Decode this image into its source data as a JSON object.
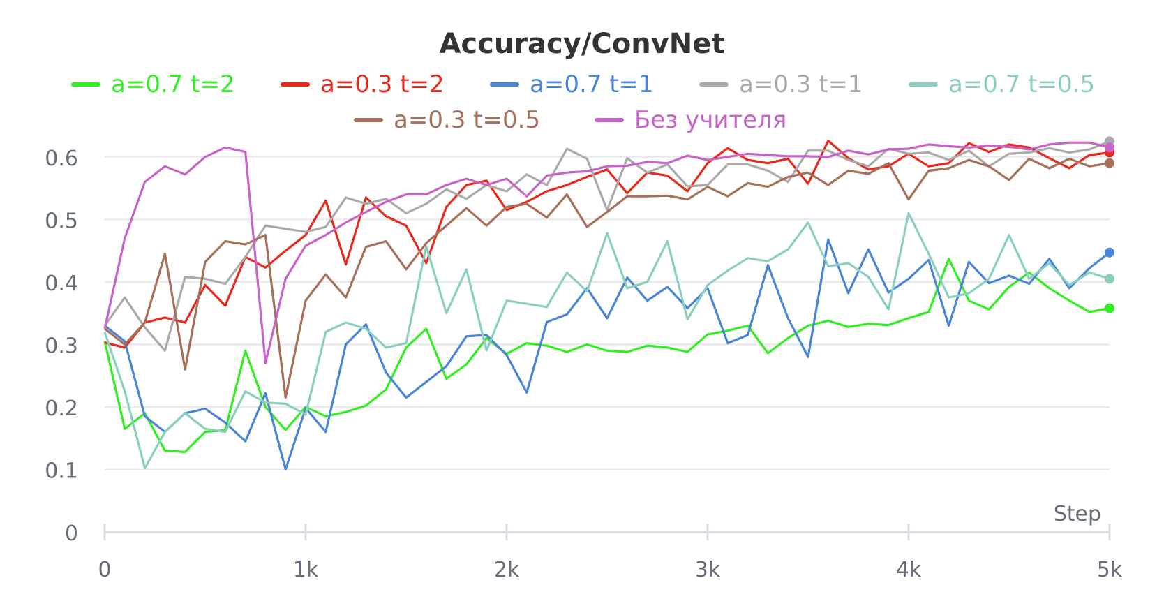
{
  "chart_data": {
    "type": "line",
    "title": "Accuracy/ConvNet",
    "xlabel": "Step",
    "ylabel": "",
    "xlim": [
      0,
      5000
    ],
    "ylim": [
      0,
      0.65
    ],
    "xticks": [
      0,
      1000,
      2000,
      3000,
      4000,
      5000
    ],
    "xtick_labels": [
      "0",
      "1k",
      "2k",
      "3k",
      "4k",
      "5k"
    ],
    "yticks": [
      0,
      0.1,
      0.2,
      0.3,
      0.4,
      0.5,
      0.6
    ],
    "ytick_labels": [
      "0",
      "0.1",
      "0.2",
      "0.3",
      "0.4",
      "0.5",
      "0.6"
    ],
    "grid": true,
    "legend_position": "top",
    "x": [
      0,
      100,
      200,
      300,
      400,
      500,
      600,
      700,
      800,
      900,
      1000,
      1100,
      1200,
      1300,
      1400,
      1500,
      1600,
      1700,
      1800,
      1900,
      2000,
      2100,
      2200,
      2300,
      2400,
      2500,
      2600,
      2700,
      2800,
      2900,
      3000,
      3100,
      3200,
      3300,
      3400,
      3500,
      3600,
      3700,
      3800,
      3900,
      4000,
      4100,
      4200,
      4300,
      4400,
      4500,
      4600,
      4700,
      4800,
      4900,
      5000
    ],
    "series": [
      {
        "name": "a=0.7 t=2",
        "color": "#33ee22",
        "values": [
          0.305,
          0.165,
          0.19,
          0.13,
          0.128,
          0.16,
          0.163,
          0.29,
          0.2,
          0.163,
          0.2,
          0.185,
          0.192,
          0.202,
          0.228,
          0.295,
          0.325,
          0.245,
          0.268,
          0.31,
          0.285,
          0.302,
          0.298,
          0.288,
          0.3,
          0.29,
          0.288,
          0.298,
          0.295,
          0.288,
          0.316,
          0.322,
          0.33,
          0.286,
          0.31,
          0.33,
          0.338,
          0.328,
          0.333,
          0.331,
          0.342,
          0.352,
          0.437,
          0.37,
          0.356,
          0.392,
          0.415,
          0.39,
          0.37,
          0.352,
          0.358
        ]
      },
      {
        "name": "a=0.3 t=2",
        "color": "#e82a1c",
        "values": [
          0.303,
          0.295,
          0.335,
          0.343,
          0.335,
          0.395,
          0.362,
          0.44,
          0.423,
          0.45,
          0.475,
          0.53,
          0.428,
          0.535,
          0.505,
          0.49,
          0.43,
          0.52,
          0.555,
          0.562,
          0.515,
          0.528,
          0.545,
          0.555,
          0.568,
          0.58,
          0.542,
          0.575,
          0.57,
          0.545,
          0.59,
          0.614,
          0.595,
          0.59,
          0.597,
          0.557,
          0.626,
          0.598,
          0.58,
          0.585,
          0.605,
          0.585,
          0.59,
          0.622,
          0.608,
          0.62,
          0.615,
          0.598,
          0.582,
          0.603,
          0.607
        ]
      },
      {
        "name": "a=0.7 t=1",
        "color": "#4a85d8",
        "values": [
          0.33,
          0.305,
          0.185,
          0.16,
          0.19,
          0.197,
          0.175,
          0.145,
          0.222,
          0.1,
          0.198,
          0.16,
          0.3,
          0.332,
          0.255,
          0.215,
          0.24,
          0.265,
          0.313,
          0.315,
          0.283,
          0.223,
          0.336,
          0.348,
          0.39,
          0.342,
          0.407,
          0.37,
          0.392,
          0.358,
          0.39,
          0.302,
          0.315,
          0.427,
          0.342,
          0.28,
          0.468,
          0.382,
          0.452,
          0.383,
          0.405,
          0.435,
          0.33,
          0.432,
          0.398,
          0.41,
          0.397,
          0.437,
          0.39,
          0.422,
          0.447
        ]
      },
      {
        "name": "a=0.3 t=1",
        "color": "#aaaaaa",
        "values": [
          0.33,
          0.375,
          0.327,
          0.29,
          0.408,
          0.405,
          0.397,
          0.44,
          0.49,
          0.485,
          0.48,
          0.488,
          0.535,
          0.525,
          0.533,
          0.51,
          0.525,
          0.548,
          0.533,
          0.555,
          0.545,
          0.572,
          0.555,
          0.613,
          0.597,
          0.515,
          0.598,
          0.575,
          0.588,
          0.553,
          0.555,
          0.588,
          0.588,
          0.578,
          0.56,
          0.61,
          0.61,
          0.595,
          0.585,
          0.613,
          0.605,
          0.607,
          0.595,
          0.61,
          0.585,
          0.605,
          0.607,
          0.614,
          0.607,
          0.612,
          0.625
        ]
      },
      {
        "name": "a=0.7 t=0.5",
        "color": "#8ccfc0",
        "values": [
          0.32,
          0.225,
          0.102,
          0.16,
          0.19,
          0.165,
          0.16,
          0.225,
          0.207,
          0.205,
          0.188,
          0.32,
          0.335,
          0.325,
          0.295,
          0.302,
          0.457,
          0.35,
          0.42,
          0.29,
          0.37,
          0.365,
          0.36,
          0.415,
          0.385,
          0.478,
          0.39,
          0.4,
          0.465,
          0.34,
          0.395,
          0.418,
          0.438,
          0.433,
          0.452,
          0.495,
          0.425,
          0.43,
          0.408,
          0.356,
          0.51,
          0.445,
          0.375,
          0.382,
          0.405,
          0.475,
          0.405,
          0.43,
          0.395,
          0.415,
          0.405
        ]
      },
      {
        "name": "a=0.3 t=0.5",
        "color": "#a6705a",
        "values": [
          0.325,
          0.3,
          0.335,
          0.445,
          0.26,
          0.432,
          0.465,
          0.46,
          0.475,
          0.215,
          0.37,
          0.412,
          0.375,
          0.456,
          0.465,
          0.42,
          0.462,
          0.49,
          0.518,
          0.49,
          0.52,
          0.525,
          0.503,
          0.54,
          0.488,
          0.512,
          0.537,
          0.537,
          0.538,
          0.532,
          0.552,
          0.537,
          0.558,
          0.552,
          0.568,
          0.575,
          0.555,
          0.578,
          0.573,
          0.59,
          0.532,
          0.578,
          0.582,
          0.595,
          0.585,
          0.563,
          0.597,
          0.582,
          0.597,
          0.585,
          0.59
        ]
      },
      {
        "name": "Без учителя",
        "color": "#c864c8",
        "values": [
          0.325,
          0.47,
          0.56,
          0.585,
          0.572,
          0.6,
          0.615,
          0.608,
          0.27,
          0.405,
          0.458,
          0.475,
          0.495,
          0.512,
          0.528,
          0.54,
          0.54,
          0.555,
          0.565,
          0.555,
          0.565,
          0.537,
          0.57,
          0.575,
          0.577,
          0.585,
          0.586,
          0.592,
          0.59,
          0.602,
          0.595,
          0.6,
          0.605,
          0.603,
          0.601,
          0.601,
          0.6,
          0.61,
          0.604,
          0.612,
          0.613,
          0.62,
          0.617,
          0.615,
          0.618,
          0.616,
          0.612,
          0.62,
          0.623,
          0.623,
          0.615
        ]
      }
    ]
  }
}
